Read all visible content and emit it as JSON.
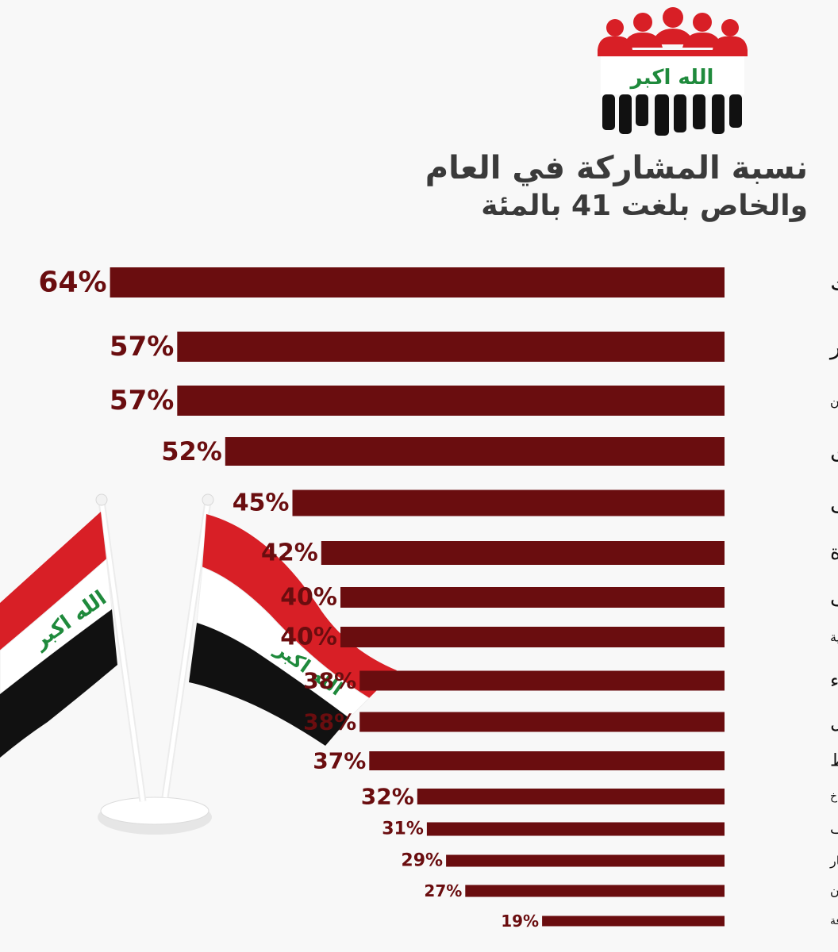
{
  "title": {
    "line1": "نسبة المشاركة في العام",
    "line2": "والخاص بلغت 41 بالمئة"
  },
  "logo": {
    "icon": "people-flag-logo-icon",
    "inscription": "الله اكبر"
  },
  "flags_image": {
    "icon": "iraqi-flags-icon",
    "inscription": "الله اكبر"
  },
  "colors": {
    "bar": "#6a0d0f",
    "flag_red": "#d81f26",
    "flag_black": "#111111",
    "flag_green": "#1f8a3c"
  },
  "chart_data": {
    "type": "bar",
    "orientation": "horizontal",
    "categories": [
      "كركوك",
      "الانبار",
      "صلاح الدين",
      "نينوى",
      "المثنى",
      "البصرة",
      "ديالى",
      "الديوانية",
      "كربلاء",
      "بابل",
      "واسط",
      "بغداد - الكراخ",
      "النجف",
      "ذي قار",
      "ميسان",
      "بغداد - الرصافة"
    ],
    "values": [
      64,
      57,
      57,
      52,
      45,
      42,
      40,
      40,
      38,
      38,
      37,
      32,
      31,
      29,
      27,
      19
    ],
    "value_labels": [
      "64%",
      "57%",
      "57%",
      "52%",
      "45%",
      "42%",
      "40%",
      "40%",
      "38%",
      "38%",
      "37%",
      "32%",
      "31%",
      "29%",
      "27%",
      "19%"
    ],
    "unit": "%",
    "grid": false,
    "legend": "none"
  }
}
